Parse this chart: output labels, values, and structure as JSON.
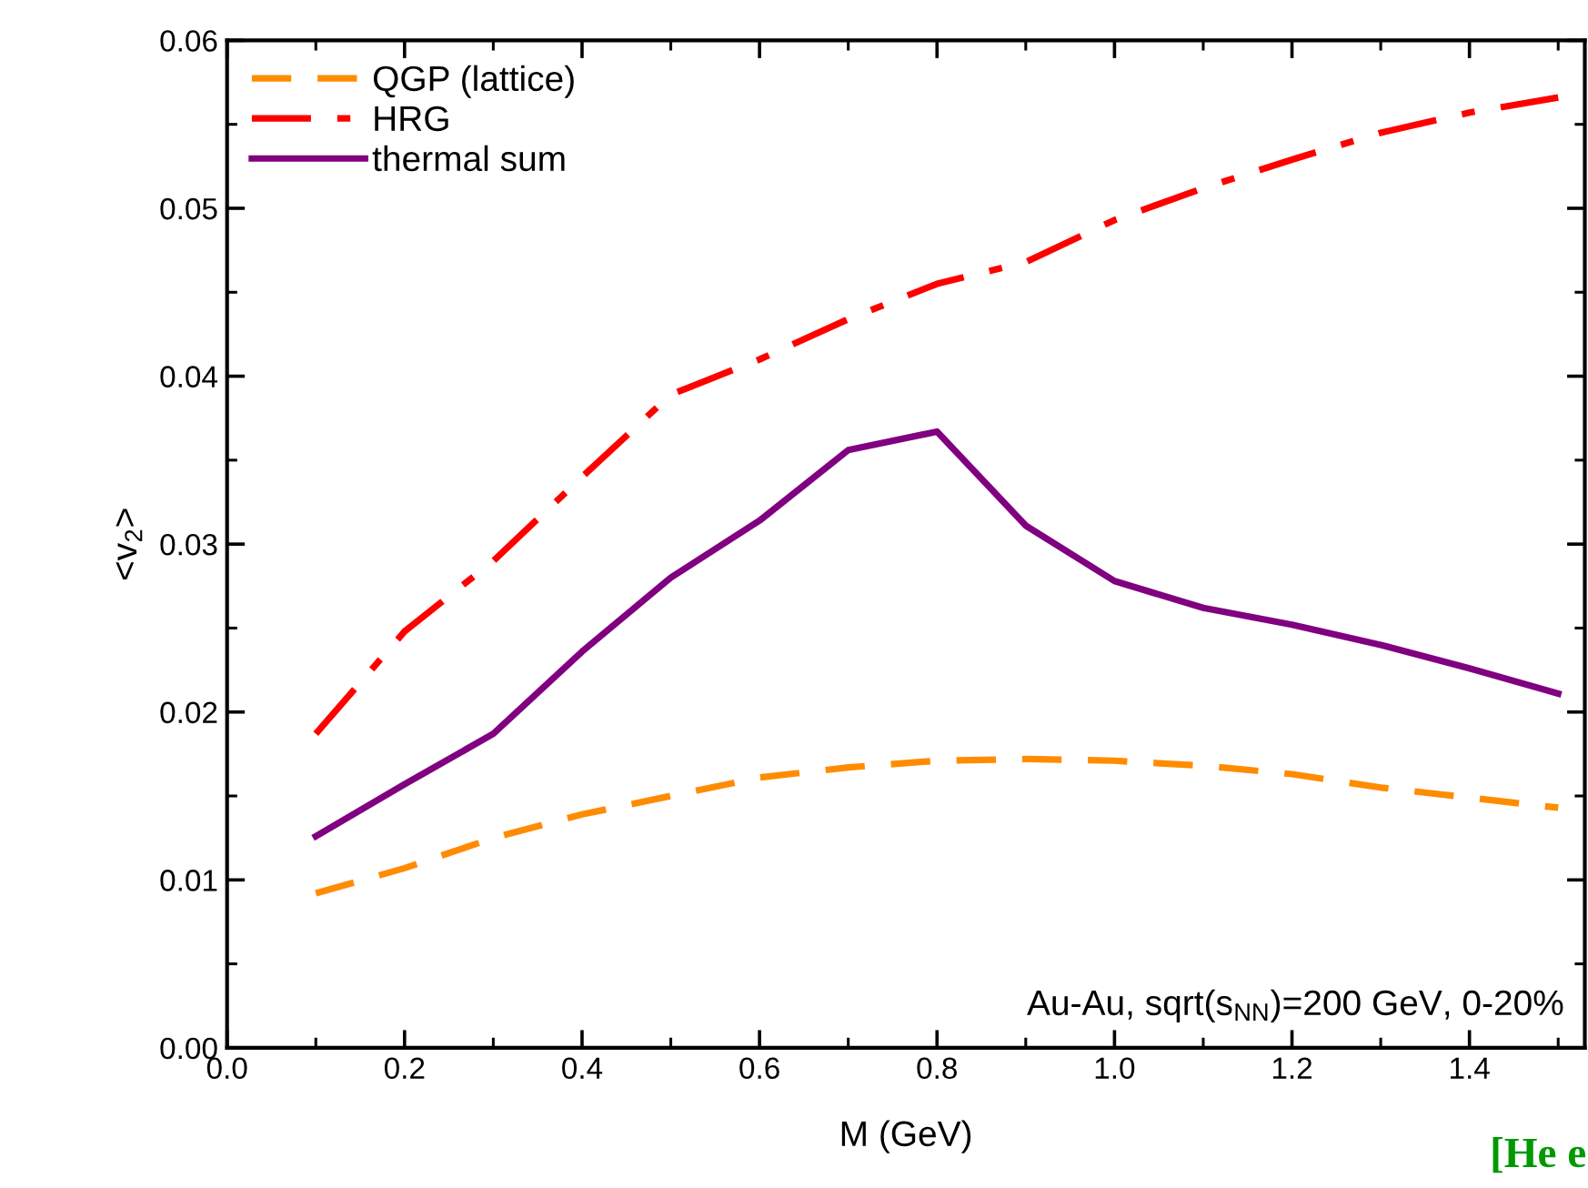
{
  "chart_data": {
    "type": "line",
    "xlabel": "M (GeV)",
    "ylabel": "<v$_{2}$>",
    "x": [
      0.1,
      0.2,
      0.3,
      0.4,
      0.5,
      0.6,
      0.7,
      0.8,
      0.9,
      1.0,
      1.1,
      1.2,
      1.3,
      1.4,
      1.5
    ],
    "series": [
      {
        "name": "QGP (lattice)",
        "color": "#ff8c00",
        "line_style": "dashed",
        "values": [
          0.0092,
          0.0107,
          0.0125,
          0.0139,
          0.015,
          0.0161,
          0.0167,
          0.0171,
          0.0172,
          0.0171,
          0.0168,
          0.0163,
          0.0155,
          0.0149,
          0.0143
        ]
      },
      {
        "name": "HRG",
        "color": "#ff0000",
        "line_style": "dashdot",
        "values": [
          0.0187,
          0.0248,
          0.029,
          0.034,
          0.0389,
          0.041,
          0.0434,
          0.0455,
          0.0468,
          0.0493,
          0.0512,
          0.0529,
          0.0545,
          0.0557,
          0.0566
        ]
      },
      {
        "name": "thermal sum",
        "color": "#800080",
        "line_style": "solid",
        "values": [
          0.0126,
          0.0157,
          0.0187,
          0.0236,
          0.028,
          0.0314,
          0.0356,
          0.0367,
          0.0311,
          0.0278,
          0.0262,
          0.0252,
          0.024,
          0.0226,
          0.0211
        ]
      }
    ],
    "xlim": [
      0,
      1.53
    ],
    "xticks": [
      {
        "value": 0,
        "label": "0.0"
      },
      0.2,
      0.4,
      0.6,
      0.8,
      {
        "value": 1,
        "label": "1.0"
      },
      1.2,
      1.4
    ],
    "ylim": [
      0,
      0.06
    ],
    "yticks": [
      {
        "value": 0,
        "label": "0.00"
      },
      {
        "value": 0.01,
        "label": "0.01"
      },
      {
        "value": 0.02,
        "label": "0.02"
      },
      {
        "value": 0.03,
        "label": "0.03"
      },
      {
        "value": 0.04,
        "label": "0.04"
      },
      {
        "value": 0.05,
        "label": "0.05"
      },
      {
        "value": 0.06,
        "label": "0.06"
      }
    ],
    "legend": "top left",
    "grid": false,
    "marker": "none",
    "annotations": [
      "Au-Au, sqrt(s$_{NN}$)=200 GeV, 0-20%",
      "[He e"
    ]
  }
}
